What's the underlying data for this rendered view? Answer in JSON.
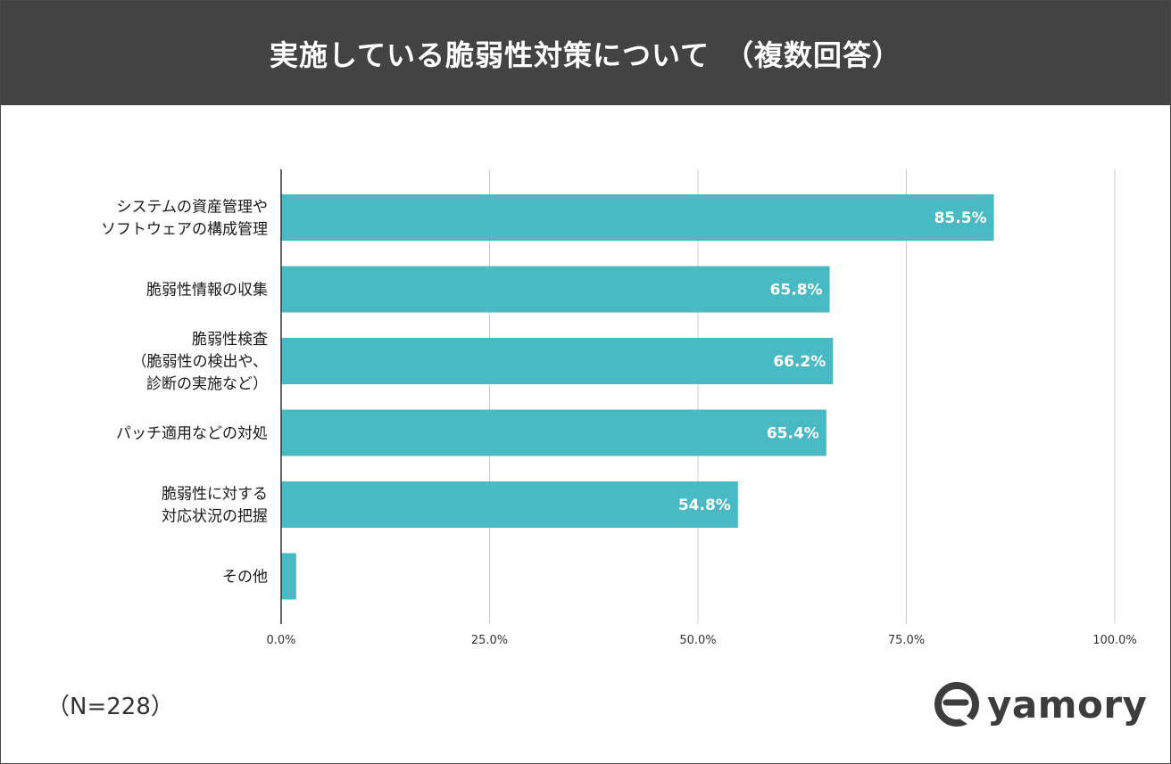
{
  "header": {
    "title": "実施している脆弱性対策について　（複数回答）"
  },
  "chart_data": {
    "type": "bar",
    "orientation": "horizontal",
    "title": "実施している脆弱性対策について　（複数回答）",
    "categories": [
      [
        "システムの資産管理や",
        "ソフトウェアの構成管理"
      ],
      [
        "脆弱性情報の収集"
      ],
      [
        "脆弱性検査",
        "（脆弱性の検出や、",
        "診断の実施など）"
      ],
      [
        "パッチ適用などの対処"
      ],
      [
        "脆弱性に対する",
        "対応状況の把握"
      ],
      [
        "その他"
      ]
    ],
    "values": [
      85.5,
      65.8,
      66.2,
      65.4,
      54.8,
      1.8
    ],
    "value_labels": [
      "85.5%",
      "65.8%",
      "66.2%",
      "65.4%",
      "54.8%",
      ""
    ],
    "xlim": [
      0,
      100
    ],
    "ticks": [
      0,
      25,
      50,
      75,
      100
    ],
    "tick_labels": [
      "0.0%",
      "25.0%",
      "50.0%",
      "75.0%",
      "100.0%"
    ],
    "grid": true,
    "bar_color": "#48bac4"
  },
  "footnote": "（N=228）",
  "logo": {
    "text": "yamory"
  }
}
